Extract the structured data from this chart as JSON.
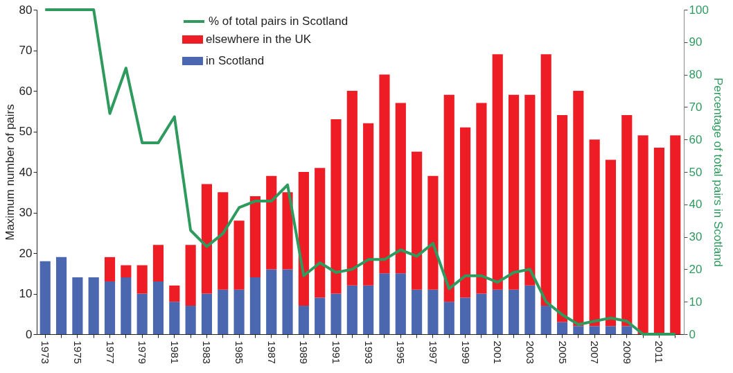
{
  "chart_data": {
    "type": "bar",
    "stacked": true,
    "ylabel": "Maximum number of pairs",
    "y2label": "Percentage of total pairs in Scotland",
    "categories": [
      "1973",
      null,
      "1975",
      null,
      "1977",
      null,
      "1979",
      null,
      "1981",
      null,
      "1983",
      null,
      "1985",
      null,
      "1987",
      null,
      "1989",
      null,
      "1991",
      null,
      "1993",
      null,
      "1995",
      null,
      "1997",
      null,
      "1999",
      null,
      "2001",
      null,
      "2003",
      null,
      "2005",
      null,
      "2007",
      null,
      "2009",
      null,
      "2011",
      null
    ],
    "series": [
      {
        "name": "in Scotland",
        "color": "#4a67b0",
        "values": [
          18,
          19,
          14,
          14,
          13,
          14,
          10,
          13,
          8,
          7,
          10,
          11,
          11,
          14,
          16,
          16,
          7,
          9,
          10,
          12,
          12,
          15,
          15,
          11,
          11,
          8,
          9,
          10,
          11,
          11,
          12,
          7,
          3,
          2,
          2,
          2,
          2,
          0,
          0,
          0
        ]
      },
      {
        "name": "elsewhere in the UK",
        "color": "#ee1c25",
        "values": [
          0,
          0,
          0,
          0,
          6,
          3,
          7,
          9,
          4,
          15,
          27,
          24,
          17,
          20,
          23,
          19,
          33,
          32,
          43,
          48,
          40,
          49,
          42,
          34,
          28,
          51,
          42,
          47,
          58,
          48,
          47,
          62,
          51,
          58,
          46,
          41,
          52,
          49,
          46,
          49
        ]
      },
      {
        "name": "% of total pairs in Scotland",
        "type": "line",
        "axis": "y2",
        "color": "#2e9a5e",
        "values": [
          100,
          100,
          100,
          100,
          68,
          82,
          59,
          59,
          67,
          32,
          27,
          31,
          39,
          41,
          41,
          46,
          18,
          22,
          19,
          20,
          23,
          23,
          26,
          24,
          28,
          14,
          18,
          18,
          16,
          19,
          20,
          10,
          6,
          3,
          4,
          5,
          4,
          0,
          0,
          0
        ]
      }
    ],
    "ylim": [
      0,
      80
    ],
    "yticks": [
      0,
      10,
      20,
      30,
      40,
      50,
      60,
      70,
      80
    ],
    "y2lim": [
      0,
      100
    ],
    "y2ticks": [
      0,
      10,
      20,
      30,
      40,
      50,
      60,
      70,
      80,
      90,
      100
    ],
    "grid": false,
    "legend": "top"
  }
}
